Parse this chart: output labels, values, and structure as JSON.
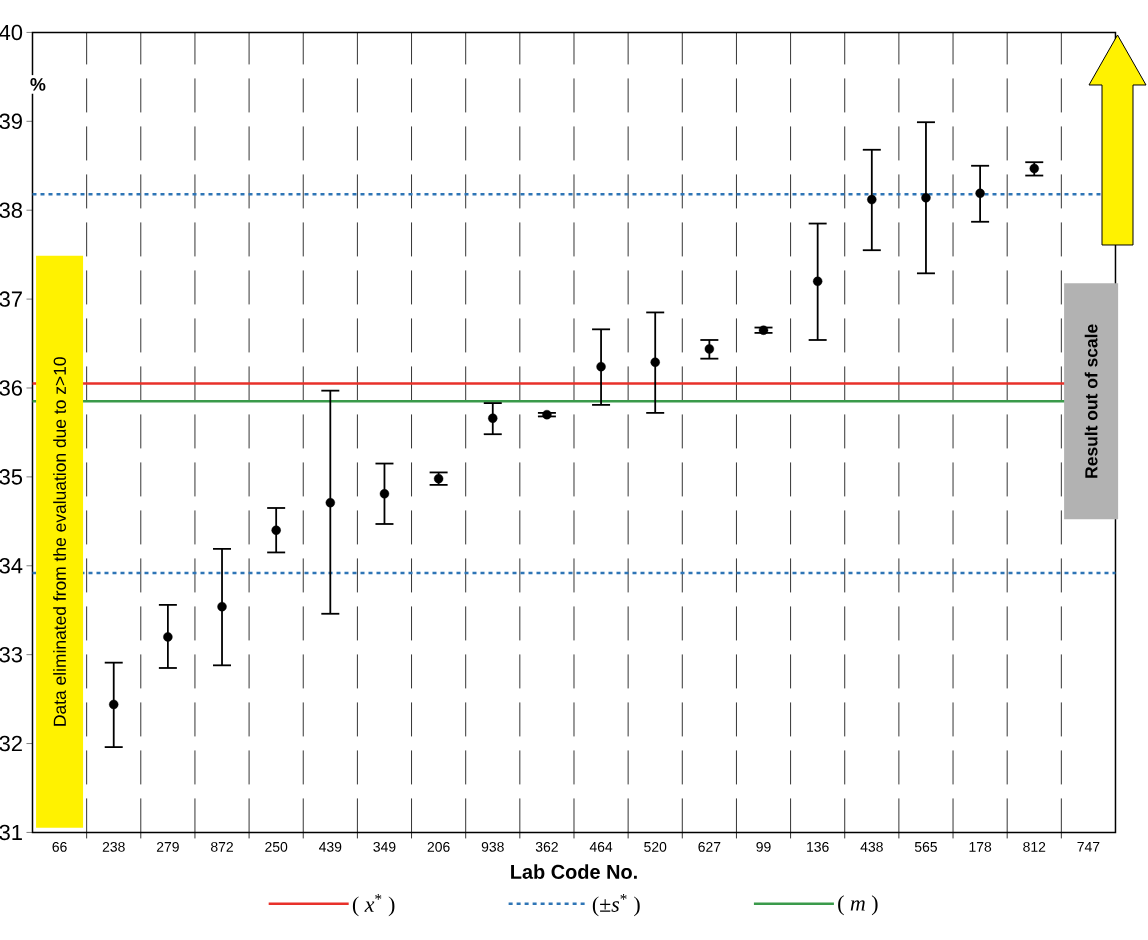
{
  "chart_data": {
    "type": "scatter",
    "xlabel": "Lab Code No.",
    "ylabel": "%",
    "categories": [
      "66",
      "238",
      "279",
      "872",
      "250",
      "439",
      "349",
      "206",
      "938",
      "362",
      "464",
      "520",
      "627",
      "99",
      "136",
      "438",
      "565",
      "178",
      "812",
      "747"
    ],
    "values": [
      null,
      32.44,
      33.2,
      33.54,
      34.4,
      34.71,
      34.81,
      34.98,
      35.66,
      35.7,
      36.24,
      36.29,
      36.44,
      36.65,
      37.2,
      38.12,
      38.14,
      38.19,
      38.47,
      null
    ],
    "errors": [
      null,
      [
        31.96,
        32.91
      ],
      [
        32.85,
        33.56
      ],
      [
        32.88,
        34.19
      ],
      [
        34.15,
        34.65
      ],
      [
        33.46,
        35.97
      ],
      [
        34.47,
        35.15
      ],
      [
        34.91,
        35.05
      ],
      [
        35.48,
        35.83
      ],
      0.02,
      [
        35.81,
        36.66
      ],
      [
        35.72,
        36.85
      ],
      [
        36.33,
        36.54
      ],
      0.03,
      [
        36.54,
        37.85
      ],
      [
        37.55,
        38.68
      ],
      [
        37.29,
        38.99
      ],
      [
        37.87,
        38.5
      ],
      [
        38.39,
        38.54
      ],
      null
    ],
    "color": "#000000",
    "ylim": [
      31,
      40
    ],
    "yticks": [
      31,
      32,
      33,
      34,
      35,
      36,
      37,
      38,
      39,
      40
    ],
    "grid": "x",
    "legend": "bottom",
    "ref_lines": [
      {
        "axis": "y",
        "value": 36.05,
        "label": "( *x*$^{*}$ )",
        "color": "#e8312a",
        "line_style": "solid"
      },
      {
        "axis": "y",
        "value": 38.18,
        "label": "(±*s*$^{*}$ )",
        "color": "#2e75b6",
        "line_style": "dashed"
      },
      {
        "axis": "y",
        "value": 33.92,
        "color": "#2e75b6",
        "line_style": "dashed"
      },
      {
        "axis": "y",
        "value": 35.85,
        "label": "( *m* )",
        "color": "#3a9a4a",
        "line_style": "solid"
      }
    ],
    "annotations": [
      "Data eliminated from the evaluation due to z>10",
      "Result out of scale"
    ]
  }
}
